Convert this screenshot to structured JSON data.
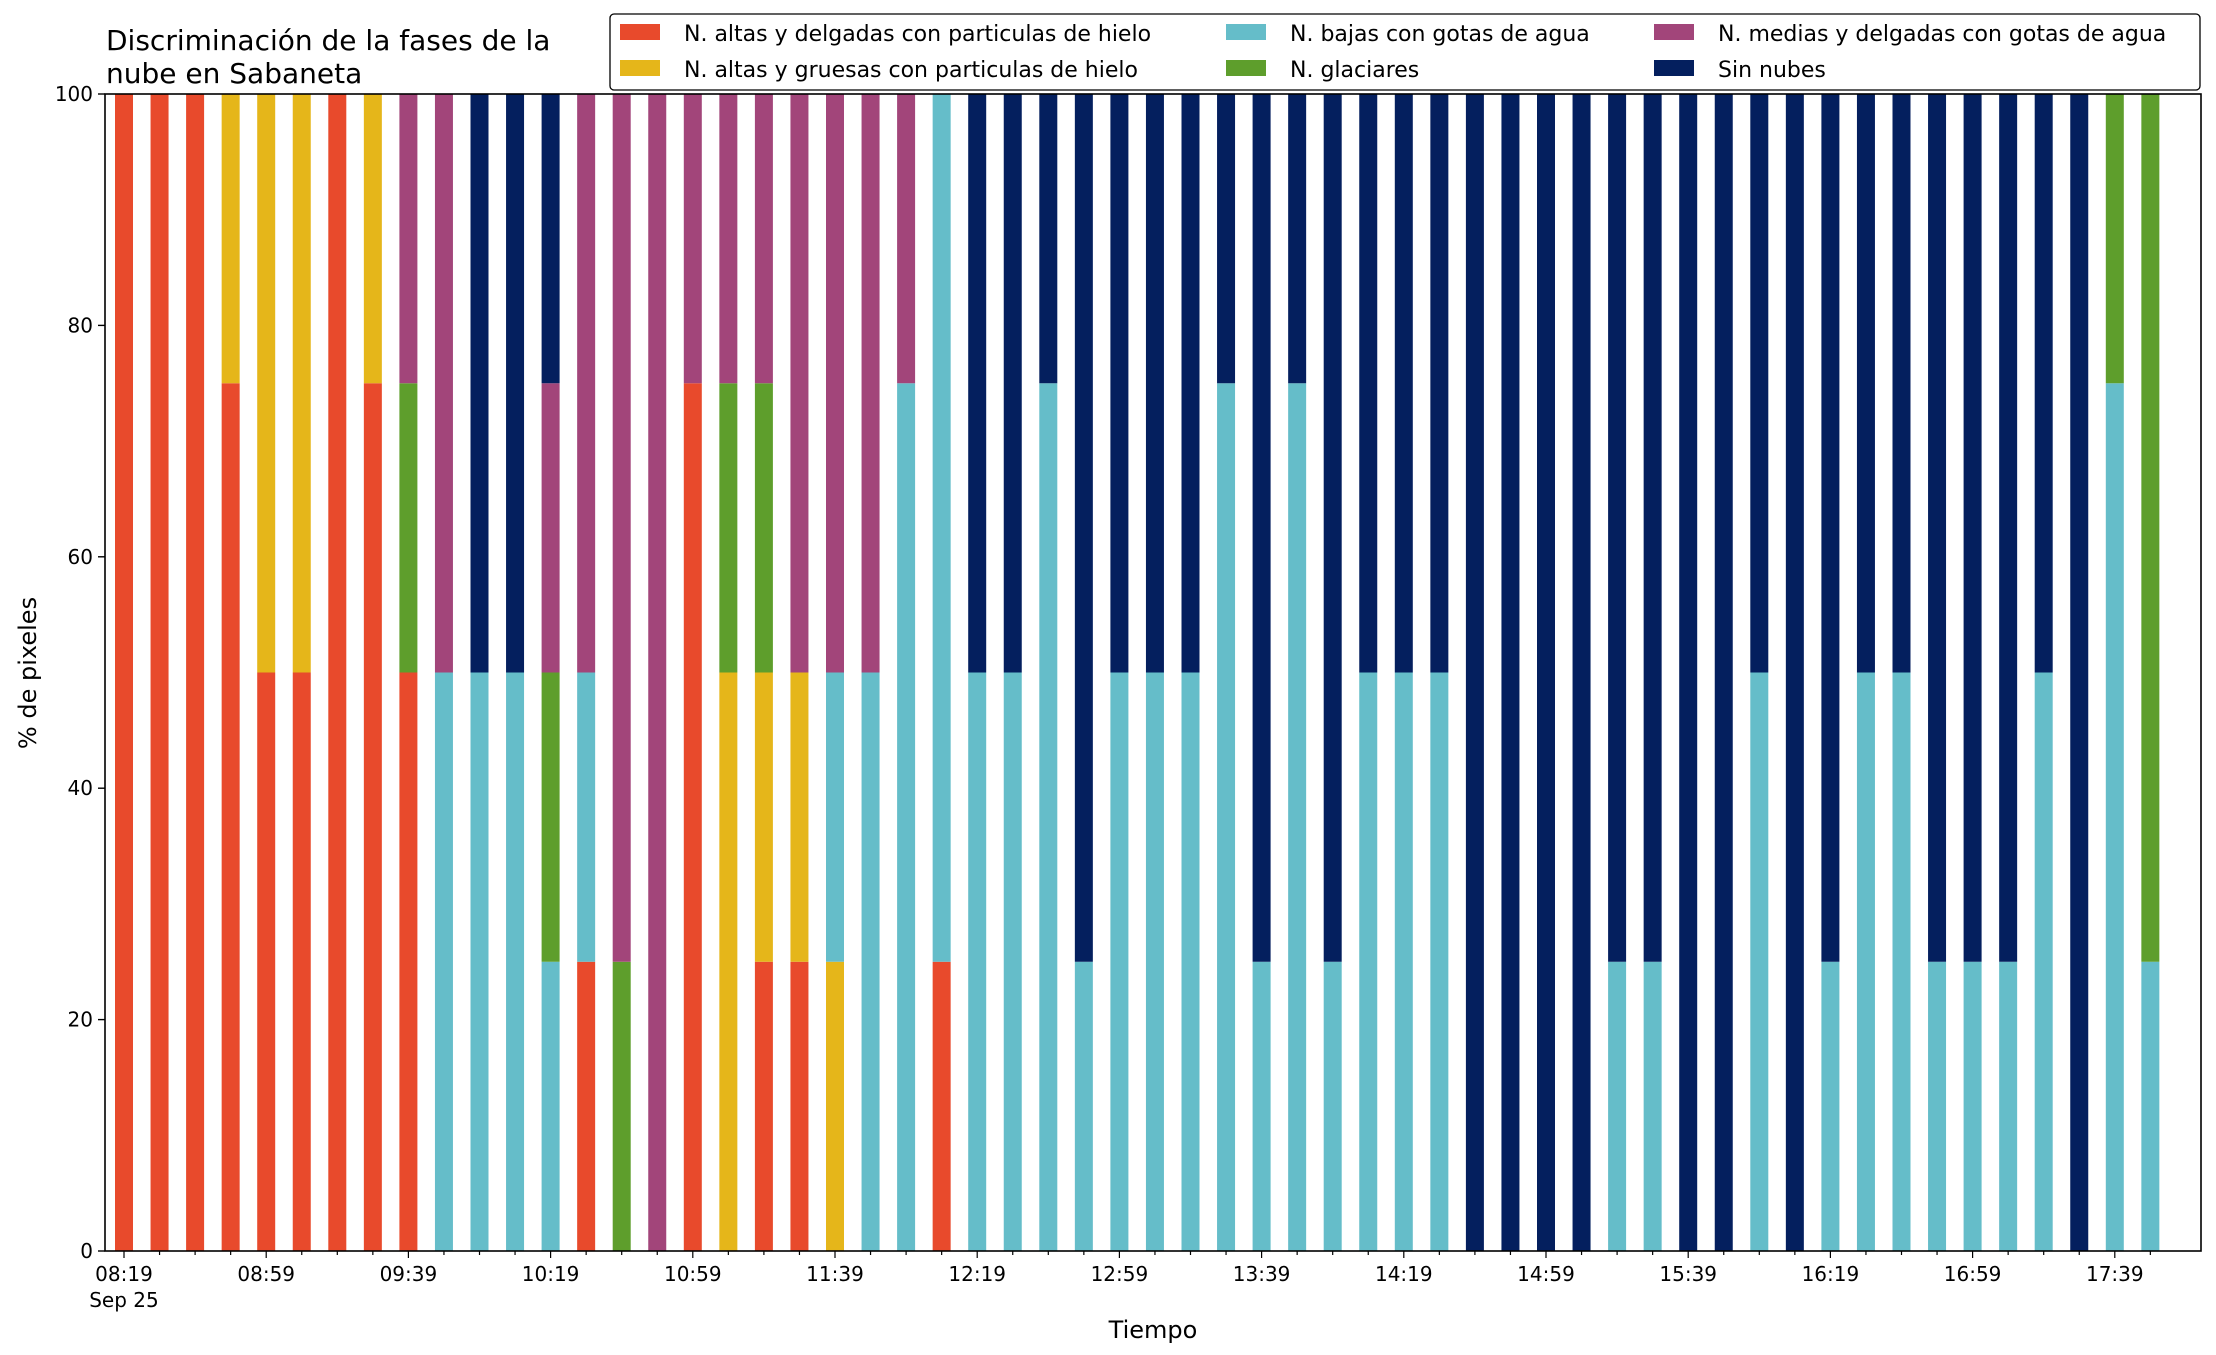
{
  "chart_data": {
    "type": "bar",
    "stacked": true,
    "title_lines": [
      "Discriminación de la fases de la",
      "nube en Sabaneta"
    ],
    "xlabel": "Tiempo",
    "ylabel": "% de pixeles",
    "ylim": [
      0,
      100
    ],
    "yticks": [
      0,
      20,
      40,
      60,
      80,
      100
    ],
    "x_tick_labels": [
      "08:19",
      "08:59",
      "09:39",
      "10:19",
      "10:59",
      "11:39",
      "12:19",
      "12:59",
      "13:39",
      "14:19",
      "14:59",
      "15:39",
      "16:19",
      "16:59",
      "17:39"
    ],
    "x_date_label": "Sep 25",
    "categories": [
      "08:19",
      "08:29",
      "08:39",
      "08:49",
      "08:59",
      "09:09",
      "09:19",
      "09:29",
      "09:39",
      "09:49",
      "09:59",
      "10:09",
      "10:19",
      "10:29",
      "10:39",
      "10:49",
      "10:59",
      "11:09",
      "11:19",
      "11:29",
      "11:39",
      "11:49",
      "11:59",
      "12:09",
      "12:19",
      "12:29",
      "12:39",
      "12:49",
      "12:59",
      "13:09",
      "13:19",
      "13:29",
      "13:39",
      "13:49",
      "13:59",
      "14:09",
      "14:19",
      "14:29",
      "14:39",
      "14:49",
      "14:59",
      "15:09",
      "15:19",
      "15:29",
      "15:39",
      "15:49",
      "15:59",
      "16:09",
      "16:19",
      "16:29",
      "16:39",
      "16:49",
      "16:59",
      "17:09",
      "17:19",
      "17:29",
      "17:39",
      "17:49"
    ],
    "legend_placement": "top-right",
    "grid": false,
    "series": [
      {
        "name": "N. altas y delgadas con particulas de hielo",
        "color": "#e84a2c",
        "values": [
          100,
          100,
          100,
          75,
          50,
          50,
          100,
          75,
          50,
          0,
          0,
          0,
          0,
          25,
          0,
          0,
          75,
          0,
          25,
          25,
          0,
          0,
          0,
          25,
          0,
          0,
          0,
          0,
          0,
          0,
          0,
          0,
          0,
          0,
          0,
          0,
          0,
          0,
          0,
          0,
          0,
          0,
          0,
          0,
          0,
          0,
          0,
          0,
          0,
          0,
          0,
          0,
          0,
          0,
          0,
          0,
          0,
          0
        ]
      },
      {
        "name": "N. altas y gruesas con particulas de hielo",
        "color": "#e5b61a",
        "values": [
          0,
          0,
          0,
          25,
          50,
          50,
          0,
          25,
          0,
          0,
          0,
          0,
          0,
          0,
          0,
          0,
          0,
          50,
          25,
          25,
          25,
          0,
          0,
          0,
          0,
          0,
          0,
          0,
          0,
          0,
          0,
          0,
          0,
          0,
          0,
          0,
          0,
          0,
          0,
          0,
          0,
          0,
          0,
          0,
          0,
          0,
          0,
          0,
          0,
          0,
          0,
          0,
          0,
          0,
          0,
          0,
          0,
          0
        ]
      },
      {
        "name": "N. bajas con gotas de agua",
        "color": "#65bdc9",
        "values": [
          0,
          0,
          0,
          0,
          0,
          0,
          0,
          0,
          0,
          50,
          50,
          50,
          25,
          25,
          0,
          0,
          0,
          0,
          0,
          0,
          25,
          50,
          75,
          75,
          50,
          50,
          75,
          25,
          50,
          50,
          50,
          75,
          25,
          75,
          25,
          50,
          50,
          50,
          0,
          0,
          0,
          0,
          25,
          25,
          0,
          0,
          50,
          0,
          25,
          50,
          50,
          25,
          25,
          25,
          50,
          0,
          75,
          25
        ]
      },
      {
        "name": "N. glaciares",
        "color": "#5e9e2c",
        "values": [
          0,
          0,
          0,
          0,
          0,
          0,
          0,
          0,
          25,
          0,
          0,
          0,
          25,
          0,
          25,
          0,
          0,
          25,
          25,
          0,
          0,
          0,
          0,
          0,
          0,
          0,
          0,
          0,
          0,
          0,
          0,
          0,
          0,
          0,
          0,
          0,
          0,
          0,
          0,
          0,
          0,
          0,
          0,
          0,
          0,
          0,
          0,
          0,
          0,
          0,
          0,
          0,
          0,
          0,
          0,
          0,
          25,
          75
        ]
      },
      {
        "name": "N. medias y delgadas con gotas de agua",
        "color": "#a2457a",
        "values": [
          0,
          0,
          0,
          0,
          0,
          0,
          0,
          0,
          25,
          50,
          0,
          0,
          25,
          50,
          75,
          100,
          25,
          25,
          25,
          50,
          50,
          50,
          25,
          0,
          0,
          0,
          0,
          0,
          0,
          0,
          0,
          0,
          0,
          0,
          0,
          0,
          0,
          0,
          0,
          0,
          0,
          0,
          0,
          0,
          0,
          0,
          0,
          0,
          0,
          0,
          0,
          0,
          0,
          0,
          0,
          0,
          0,
          0
        ]
      },
      {
        "name": "Sin nubes",
        "color": "#041f5e",
        "values": [
          0,
          0,
          0,
          0,
          0,
          0,
          0,
          0,
          0,
          0,
          50,
          50,
          25,
          0,
          0,
          0,
          0,
          0,
          0,
          0,
          0,
          0,
          0,
          0,
          50,
          50,
          25,
          75,
          50,
          50,
          50,
          25,
          75,
          25,
          75,
          50,
          50,
          50,
          100,
          100,
          100,
          100,
          75,
          75,
          100,
          100,
          50,
          100,
          75,
          50,
          50,
          75,
          75,
          75,
          50,
          100,
          0,
          0
        ]
      }
    ],
    "legend_order": [
      0,
      1,
      2,
      3,
      4,
      5
    ]
  }
}
